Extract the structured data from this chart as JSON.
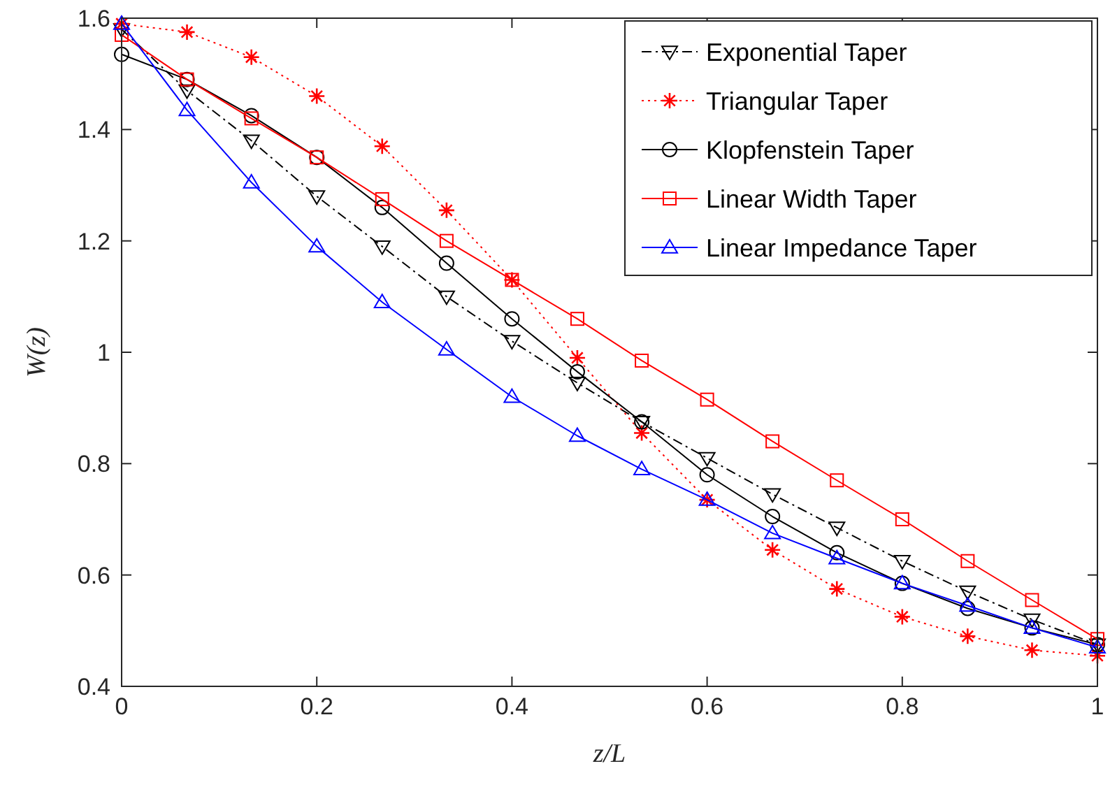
{
  "chart_data": {
    "type": "line",
    "xlabel": "z/L",
    "ylabel": "W(z)",
    "x": [
      0,
      0.067,
      0.133,
      0.2,
      0.267,
      0.333,
      0.4,
      0.467,
      0.533,
      0.6,
      0.667,
      0.733,
      0.8,
      0.867,
      0.933,
      1
    ],
    "xlim": [
      0,
      1
    ],
    "xticks": [
      0,
      0.2,
      0.4,
      0.6,
      0.8,
      1
    ],
    "ylim": [
      0.4,
      1.6
    ],
    "yticks": [
      0.4,
      0.6,
      0.8,
      1,
      1.2,
      1.4,
      1.6
    ],
    "grid": false,
    "legend": "top right",
    "series": [
      {
        "name": "Exponential Taper",
        "color": "#000000",
        "marker": "triangle-down",
        "line_style": "dashdot",
        "values": [
          1.58,
          1.47,
          1.38,
          1.28,
          1.19,
          1.1,
          1.02,
          0.945,
          0.875,
          0.81,
          0.745,
          0.685,
          0.625,
          0.57,
          0.52,
          0.475
        ]
      },
      {
        "name": "Triangular Taper",
        "color": "#ff0000",
        "marker": "cross",
        "line_style": "dotted",
        "values": [
          1.59,
          1.575,
          1.53,
          1.46,
          1.37,
          1.255,
          1.13,
          0.99,
          0.855,
          0.735,
          0.645,
          0.575,
          0.525,
          0.49,
          0.465,
          0.455
        ]
      },
      {
        "name": "Klopfenstein Taper",
        "color": "#000000",
        "marker": "circle",
        "line_style": "solid",
        "values": [
          1.535,
          1.49,
          1.425,
          1.35,
          1.26,
          1.16,
          1.06,
          0.965,
          0.875,
          0.78,
          0.705,
          0.64,
          0.585,
          0.54,
          0.505,
          0.475
        ]
      },
      {
        "name": "Linear Width Taper",
        "color": "#ff0000",
        "marker": "square",
        "line_style": "solid",
        "values": [
          1.57,
          1.49,
          1.42,
          1.35,
          1.275,
          1.2,
          1.13,
          1.06,
          0.985,
          0.915,
          0.84,
          0.77,
          0.7,
          0.625,
          0.555,
          0.485
        ]
      },
      {
        "name": "Linear Impedance Taper",
        "color": "#0000ff",
        "marker": "triangle",
        "line_style": "solid",
        "values": [
          1.59,
          1.435,
          1.305,
          1.19,
          1.09,
          1.005,
          0.92,
          0.85,
          0.79,
          0.735,
          0.675,
          0.63,
          0.585,
          0.545,
          0.505,
          0.47
        ]
      }
    ]
  }
}
